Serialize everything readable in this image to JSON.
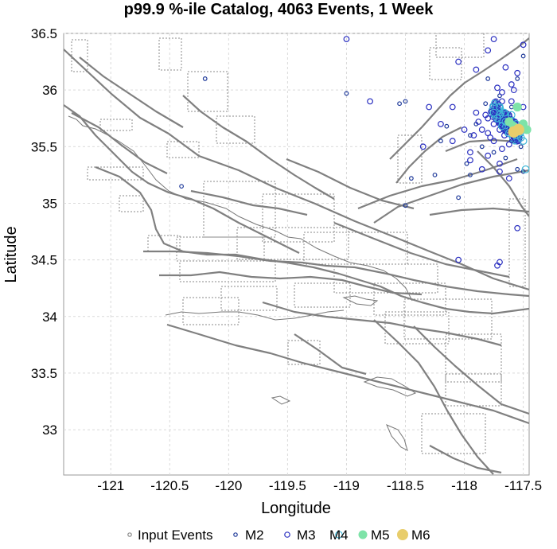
{
  "chart_data": {
    "type": "scatter",
    "title": "p99.9 %-ile Catalog, 4063 Events, 1 Week",
    "xlabel": "Longitude",
    "ylabel": "Latitude",
    "xlim": [
      -121.4,
      -117.45
    ],
    "ylim": [
      32.6,
      36.5
    ],
    "xticks": [
      -121,
      -120.5,
      -120,
      -119.5,
      -119,
      -118.5,
      -118,
      -117.5
    ],
    "xtick_labels": [
      "-121",
      "-120.5",
      "-120",
      "-119.5",
      "-119",
      "-118.5",
      "-118",
      "-117.5"
    ],
    "yticks": [
      33,
      33.5,
      34,
      34.5,
      35,
      35.5,
      36,
      36.5
    ],
    "ytick_labels": [
      "33",
      "33.5",
      "34",
      "34.5",
      "35",
      "35.5",
      "36",
      "36.5"
    ],
    "grid": true,
    "legend_position": "bottom",
    "legend": [
      {
        "label": "Input Events",
        "color": "#888888",
        "filled": false,
        "size": 2.2
      },
      {
        "label": "M2",
        "color": "#1f3a9a",
        "filled": false,
        "size": 2.2
      },
      {
        "label": "M3",
        "color": "#2a2fc0",
        "filled": false,
        "size": 3.2
      },
      {
        "label": "M4",
        "color": "#3fb8d8",
        "filled": false,
        "size": 4.2
      },
      {
        "label": "M5",
        "color": "#7ee3a8",
        "filled": true,
        "size": 5.5
      },
      {
        "label": "M6",
        "color": "#e8cd6b",
        "filled": true,
        "size": 7
      }
    ],
    "series": [
      {
        "name": "M2",
        "color": "#1f3a9a",
        "filled": false,
        "size": 2.3,
        "points": [
          [
            -120.2,
            36.1
          ],
          [
            -119,
            35.97
          ],
          [
            -118.55,
            35.88
          ],
          [
            -118.5,
            35.9
          ],
          [
            -118.45,
            35.22
          ],
          [
            -118.25,
            35.25
          ],
          [
            -118.2,
            35.55
          ],
          [
            -117.95,
            35.6
          ],
          [
            -118.05,
            35.05
          ],
          [
            -117.85,
            35.5
          ],
          [
            -117.9,
            35.7
          ],
          [
            -117.95,
            35.25
          ],
          [
            -117.55,
            35.3
          ],
          [
            -117.5,
            35.28
          ],
          [
            -117.6,
            35.85
          ],
          [
            -117.7,
            35.95
          ],
          [
            -117.55,
            36.1
          ],
          [
            -117.5,
            36.3
          ],
          [
            -117.8,
            36.1
          ],
          [
            -120.4,
            35.15
          ],
          [
            -117.75,
            35.45
          ],
          [
            -117.65,
            35.4
          ],
          [
            -118.15,
            35.68
          ],
          [
            -117.82,
            35.88
          ],
          [
            -118.5,
            34.98
          ],
          [
            -117.98,
            35.35
          ],
          [
            -117.6,
            35.55
          ],
          [
            -117.52,
            35.5
          ]
        ]
      },
      {
        "name": "M3",
        "color": "#2a2fc0",
        "filled": false,
        "size": 3.3,
        "points": [
          [
            -119,
            36.45
          ],
          [
            -118.8,
            35.9
          ],
          [
            -118.3,
            35.85
          ],
          [
            -118.1,
            35.85
          ],
          [
            -117.9,
            35.8
          ],
          [
            -118.0,
            35.65
          ],
          [
            -117.8,
            35.62
          ],
          [
            -117.75,
            35.55
          ],
          [
            -117.7,
            35.35
          ],
          [
            -117.65,
            35.75
          ],
          [
            -117.6,
            35.65
          ],
          [
            -117.55,
            35.62
          ],
          [
            -117.6,
            36.05
          ],
          [
            -117.65,
            36.2
          ],
          [
            -117.55,
            36.15
          ],
          [
            -117.8,
            36.35
          ],
          [
            -117.9,
            36.18
          ],
          [
            -117.75,
            36.45
          ],
          [
            -118.05,
            36.25
          ],
          [
            -117.5,
            35.85
          ],
          [
            -118.2,
            35.7
          ],
          [
            -118.1,
            35.55
          ],
          [
            -117.95,
            35.45
          ],
          [
            -117.85,
            35.3
          ],
          [
            -118.35,
            35.5
          ],
          [
            -118.05,
            34.5
          ],
          [
            -117.7,
            34.48
          ],
          [
            -117.72,
            34.45
          ],
          [
            -117.55,
            34.78
          ],
          [
            -117.95,
            35.38
          ],
          [
            -117.8,
            35.42
          ],
          [
            -117.7,
            35.28
          ],
          [
            -117.62,
            35.22
          ],
          [
            -117.58,
            36.0
          ],
          [
            -117.68,
            35.98
          ],
          [
            -117.72,
            36.02
          ],
          [
            -117.5,
            36.4
          ],
          [
            -117.75,
            35.7
          ],
          [
            -117.7,
            35.65
          ],
          [
            -117.88,
            35.72
          ],
          [
            -117.92,
            35.6
          ],
          [
            -117.85,
            35.65
          ],
          [
            -117.78,
            35.58
          ],
          [
            -117.82,
            35.78
          ],
          [
            -117.68,
            35.9
          ],
          [
            -117.62,
            35.78
          ],
          [
            -117.57,
            35.72
          ],
          [
            -117.52,
            35.68
          ],
          [
            -117.66,
            35.6
          ],
          [
            -117.72,
            35.82
          ],
          [
            -117.8,
            35.75
          ],
          [
            -117.75,
            35.8
          ],
          [
            -117.6,
            35.9
          ],
          [
            -117.64,
            35.7
          ],
          [
            -117.7,
            35.72
          ],
          [
            -117.58,
            35.58
          ],
          [
            -117.54,
            35.55
          ],
          [
            -117.62,
            35.52
          ],
          [
            -117.68,
            35.48
          ]
        ]
      },
      {
        "name": "M4",
        "color": "#3fb8d8",
        "filled": false,
        "size": 4.3,
        "points": [
          [
            -117.7,
            35.78
          ],
          [
            -117.65,
            35.72
          ],
          [
            -117.6,
            35.7
          ],
          [
            -117.58,
            35.66
          ],
          [
            -117.55,
            35.6
          ],
          [
            -117.52,
            35.58
          ],
          [
            -117.75,
            35.8
          ],
          [
            -117.72,
            35.75
          ],
          [
            -117.68,
            35.68
          ],
          [
            -117.62,
            35.62
          ],
          [
            -117.48,
            35.3
          ],
          [
            -117.5,
            35.55
          ],
          [
            -117.7,
            35.85
          ],
          [
            -117.66,
            35.8
          ],
          [
            -117.6,
            35.78
          ],
          [
            -117.56,
            35.7
          ]
        ]
      },
      {
        "name": "M5",
        "color": "#7ee3a8",
        "filled": true,
        "size": 5.6,
        "points": [
          [
            -117.55,
            35.85
          ],
          [
            -117.5,
            35.7
          ],
          [
            -117.58,
            35.68
          ],
          [
            -117.62,
            35.72
          ],
          [
            -117.47,
            35.65
          ]
        ]
      },
      {
        "name": "M6",
        "color": "#e8cd6b",
        "filled": true,
        "size": 7.2,
        "points": [
          [
            -117.58,
            35.63
          ],
          [
            -117.54,
            35.65
          ]
        ]
      }
    ],
    "cluster": {
      "series": "M3",
      "center": [
        -117.65,
        35.72
      ],
      "count": 4063
    }
  }
}
